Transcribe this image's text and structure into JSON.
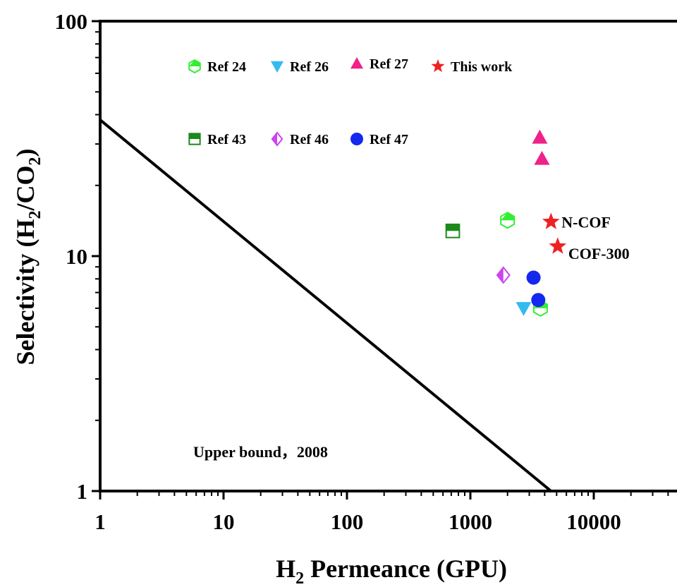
{
  "chart_data": {
    "type": "scatter",
    "xlabel": {
      "main": "H",
      "sub": "2",
      "rest": " Permeance (GPU)"
    },
    "ylabel": {
      "a": "Selectivity (H",
      "sub1": "2",
      "b": "/CO",
      "sub2": "2",
      "c": ")"
    },
    "x_scale": "log",
    "y_scale": "log",
    "xlim": [
      1,
      50000
    ],
    "ylim": [
      1,
      100
    ],
    "x_ticks": [
      1,
      10,
      100,
      1000,
      10000
    ],
    "x_tick_labels": [
      "1",
      "10",
      "100",
      "1000",
      "10000"
    ],
    "y_ticks": [
      1,
      10,
      100
    ],
    "y_tick_labels": [
      "1",
      "10",
      "100"
    ],
    "grid": false,
    "legend_position": "top-left",
    "upper_bound": {
      "label": "Upper bound，2008",
      "points": [
        [
          1,
          38
        ],
        [
          4500,
          1
        ]
      ]
    },
    "series": [
      {
        "name": "Ref 24",
        "marker": "hexagon-half",
        "color": "#33ee33",
        "points": [
          [
            2000,
            14.2
          ],
          [
            3700,
            6.0
          ]
        ]
      },
      {
        "name": "Ref 26",
        "marker": "triangle-down",
        "color": "#33bbf0",
        "points": [
          [
            2700,
            6.0
          ]
        ]
      },
      {
        "name": "Ref 27",
        "marker": "triangle-up",
        "color": "#ee2288",
        "points": [
          [
            3650,
            32
          ],
          [
            3800,
            26
          ]
        ]
      },
      {
        "name": "This work",
        "marker": "star",
        "color": "#ee2222",
        "points": [
          [
            4500,
            14.0
          ],
          [
            5100,
            11.0
          ]
        ],
        "labels": [
          "N-COF",
          "COF-300"
        ]
      },
      {
        "name": "Ref 43",
        "marker": "square-half",
        "color": "#1a8a1a",
        "points": [
          [
            720,
            12.8
          ]
        ]
      },
      {
        "name": "Ref 46",
        "marker": "diamond-half",
        "color": "#cc44ee",
        "points": [
          [
            1850,
            8.3
          ]
        ]
      },
      {
        "name": "Ref 47",
        "marker": "circle",
        "color": "#1428ee",
        "points": [
          [
            3250,
            8.1
          ],
          [
            3550,
            6.5
          ]
        ]
      }
    ]
  }
}
